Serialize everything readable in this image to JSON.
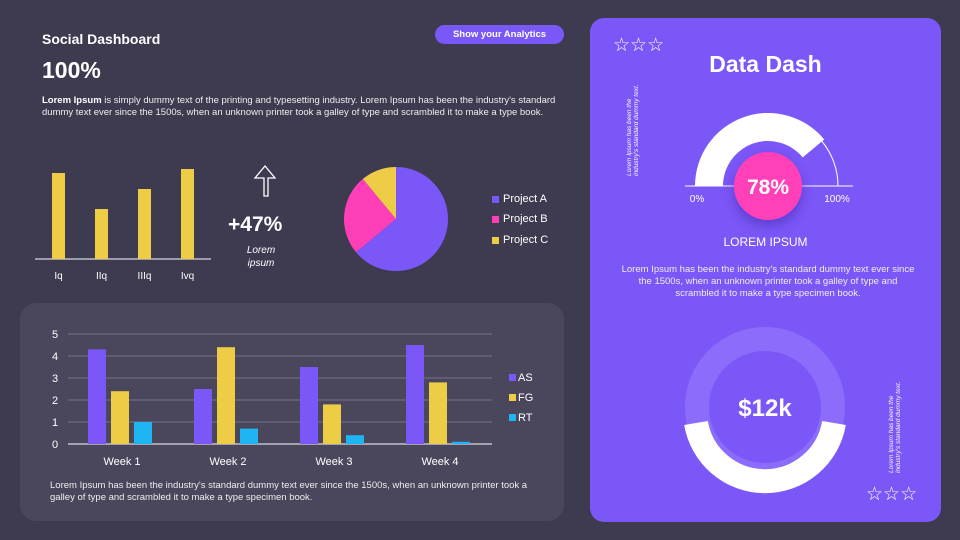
{
  "header": {
    "title": "Social Dashboard",
    "percent": "100%",
    "intro_bold": "Lorem Ipsum",
    "intro_rest": " is  simply dummy text of the printing and typesetting industry. Lorem Ipsum has been the industry's standard dummy text ever since the 1500s, when an unknown printer took a galley of type and scrambled it to make a type book.",
    "button_label": "Show your Analytics"
  },
  "growth": {
    "value": "+47%",
    "label": "Lorem ipsum",
    "icon": "arrow-up-icon"
  },
  "colors": {
    "background": "#3e3a50",
    "card": "#4a465c",
    "accent": "#7b57f8",
    "yellow": "#eccd45",
    "pink": "#ff3fb8",
    "cyan": "#1fb5f2"
  },
  "chart_data": [
    {
      "type": "bar",
      "categories": [
        "Iq",
        "IIq",
        "IIIq",
        "Ivq"
      ],
      "values": [
        4.3,
        2.5,
        3.5,
        4.5
      ],
      "color": "#eccd45"
    },
    {
      "type": "pie",
      "labels": [
        "Project A",
        "Project B",
        "Project C"
      ],
      "values": [
        64,
        25,
        11
      ],
      "colors": [
        "#7b57f8",
        "#ff3fb8",
        "#eccd45"
      ],
      "legend": "right"
    },
    {
      "type": "bar",
      "categories": [
        "Week 1",
        "Week 2",
        "Week 3",
        "Week 4"
      ],
      "ylim": [
        0,
        5
      ],
      "yticks": [
        "0",
        "1",
        "2",
        "3",
        "4",
        "5"
      ],
      "grid": true,
      "legend": "right",
      "series": [
        {
          "name": "AS",
          "values": [
            4.3,
            2.5,
            3.5,
            4.5
          ],
          "color": "#7b57f8"
        },
        {
          "name": "FG",
          "values": [
            2.4,
            4.4,
            1.8,
            2.8
          ],
          "color": "#eccd45"
        },
        {
          "name": "RT",
          "values": [
            1.0,
            0.7,
            0.4,
            0.1
          ],
          "color": "#1fb5f2"
        }
      ]
    }
  ],
  "bottom_text": "Lorem Ipsum has been the industry's standard dummy text ever since the 1500s, when an unknown printer took a galley  of type and scrambled it to make a type specimen book.",
  "right": {
    "title": "Data Dash",
    "gauge": {
      "value": 78,
      "label": "78%",
      "min_label": "0%",
      "max_label": "100%"
    },
    "subtitle": "LOREM IPSUM",
    "text": "Lorem Ipsum has been the industry's standard dummy text ever since the 1500s, when an unknown printer took a galley of type and scrambled it to make a type specimen book.",
    "donut_label": "$12k",
    "vertical_text_1": "Lorem Ipsum has been the",
    "vertical_text_2": "industry's standard dummy text.",
    "stars": "☆☆☆"
  }
}
